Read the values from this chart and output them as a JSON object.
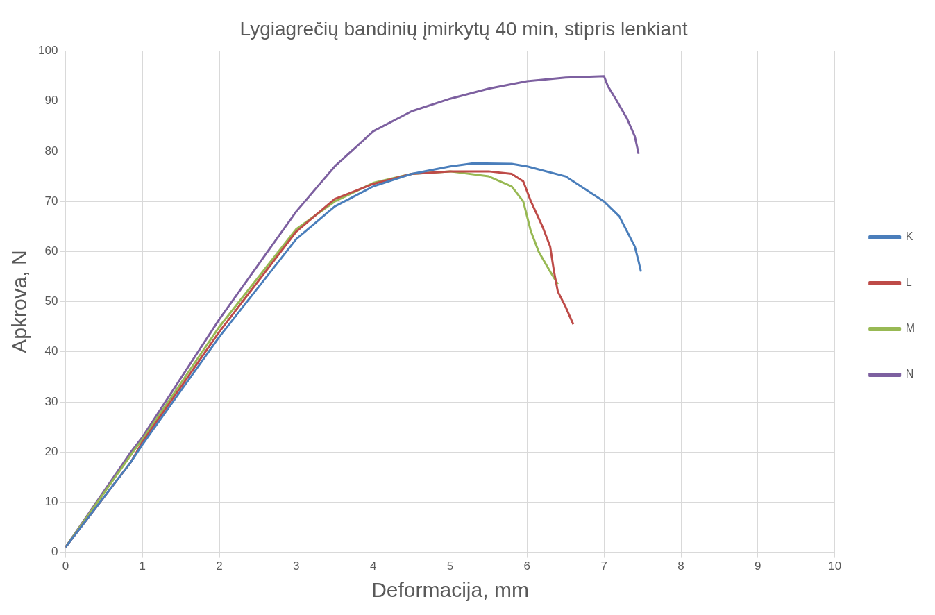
{
  "chart_data": {
    "type": "line",
    "title": "Lygiagrečių bandinių įmirkytų 40 min, stipris lenkiant",
    "xlabel": "Deformacija, mm",
    "ylabel": "Apkrova, N",
    "xlim": [
      0,
      10
    ],
    "xticks": [
      0,
      1,
      2,
      3,
      4,
      5,
      6,
      7,
      8,
      9,
      10
    ],
    "ylim": [
      0,
      100
    ],
    "yticks": [
      0,
      10,
      20,
      30,
      40,
      50,
      60,
      70,
      80,
      90,
      100
    ],
    "grid": true,
    "legend": "right",
    "marker": "none",
    "line_style": "solid",
    "series": [
      {
        "name": "K",
        "color": "#4a7ebb",
        "x": [
          0,
          0.85,
          1,
          2,
          3,
          3.5,
          4,
          4.5,
          5,
          5.3,
          5.8,
          6,
          6.5,
          7,
          7.2,
          7.4,
          7.45,
          7.48
        ],
        "values": [
          1,
          18,
          21.5,
          43,
          62.5,
          69,
          73,
          75.5,
          77,
          77.6,
          77.5,
          77,
          75,
          70,
          67,
          61,
          58,
          56
        ]
      },
      {
        "name": "L",
        "color": "#be4b48",
        "x": [
          0,
          0.85,
          1,
          2,
          3,
          3.5,
          4,
          4.5,
          5,
          5.5,
          5.8,
          5.95,
          6.05,
          6.2,
          6.3,
          6.35,
          6.4,
          6.5,
          6.6
        ],
        "values": [
          1,
          18,
          22,
          44,
          64,
          70.5,
          73.5,
          75.5,
          76,
          76,
          75.5,
          74,
          70,
          65,
          61,
          56,
          52,
          49,
          45.5
        ]
      },
      {
        "name": "M",
        "color": "#98b954",
        "x": [
          0,
          0.9,
          1,
          2,
          3,
          3.5,
          4,
          4.5,
          5,
          5.5,
          5.8,
          5.95,
          6.05,
          6.15,
          6.3,
          6.4
        ],
        "values": [
          1,
          20.5,
          22.5,
          45,
          64.5,
          70,
          73.7,
          75.5,
          76,
          75,
          73,
          70,
          64,
          60,
          56,
          53.5
        ]
      },
      {
        "name": "N",
        "color": "#7d60a0",
        "x": [
          0,
          0.85,
          1,
          2,
          3,
          3.5,
          4,
          4.5,
          5,
          5.5,
          6,
          6.5,
          7,
          7.05,
          7.15,
          7.3,
          7.4,
          7.45
        ],
        "values": [
          1,
          20,
          23,
          46.5,
          68,
          77,
          84,
          88,
          90.5,
          92.5,
          94,
          94.7,
          95,
          93,
          90.5,
          86.5,
          83,
          79.5
        ]
      }
    ]
  }
}
